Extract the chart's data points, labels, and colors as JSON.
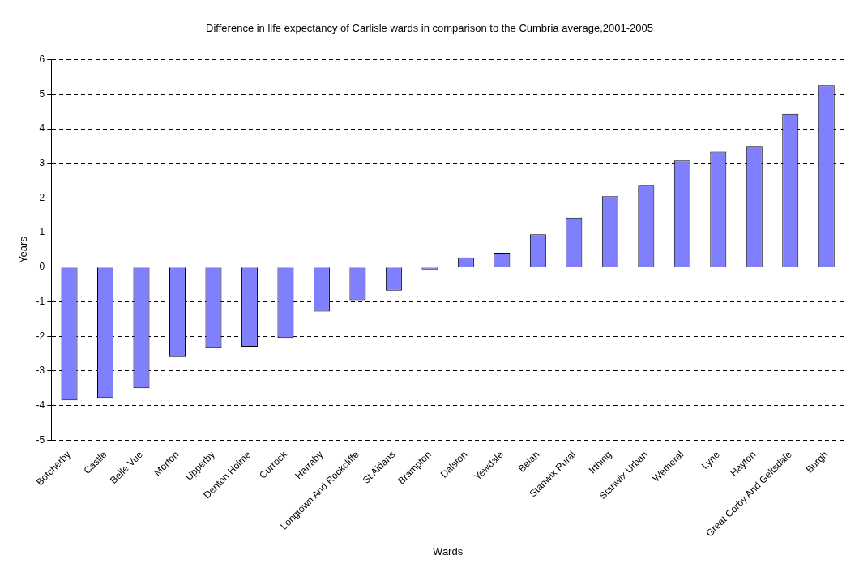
{
  "chart_data": {
    "type": "bar",
    "title": "Difference in life expectancy of Carlisle wards in comparison to the Cumbria average,2001-2005",
    "xlabel": "Wards",
    "ylabel": "Years",
    "categories": [
      "Botcherby",
      "Castle",
      "Belle Vue",
      "Morton",
      "Upperby",
      "Denton Holme",
      "Currock",
      "Harraby",
      "Longtown And Rockcliffe",
      "St Aidans",
      "Brampton",
      "Dalston",
      "Yewdale",
      "Belah",
      "Stanwix Rural",
      "Irthing",
      "Stanwix Urban",
      "Wetheral",
      "Lyne",
      "Hayton",
      "Great Corby And Geltsdale",
      "Burgh"
    ],
    "values": [
      -3.85,
      -3.78,
      -3.5,
      -2.6,
      -2.33,
      -2.3,
      -2.05,
      -1.28,
      -0.95,
      -0.68,
      -0.07,
      0.28,
      0.42,
      0.95,
      1.43,
      2.05,
      2.38,
      3.08,
      3.33,
      3.5,
      4.43,
      5.26
    ],
    "color": "#8080ff",
    "ylim": [
      -5,
      6
    ],
    "yticks": [
      -5,
      -4,
      -3,
      -2,
      -1,
      0,
      1,
      2,
      3,
      4,
      5,
      6
    ],
    "grid": "y"
  }
}
